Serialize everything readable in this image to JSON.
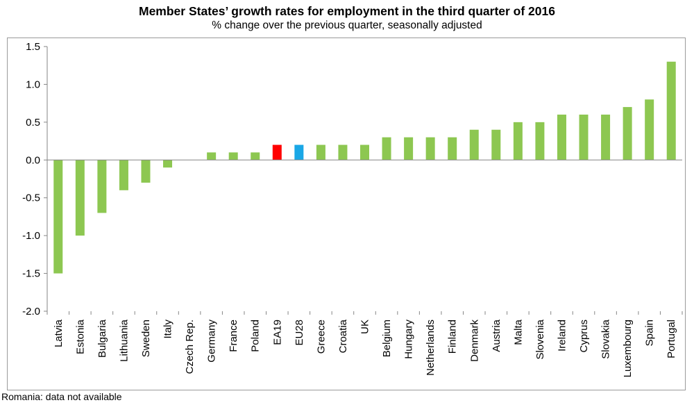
{
  "colors": {
    "default_bar": "#8dc751",
    "ea19": "#ff0000",
    "eu28": "#1aa7e6"
  },
  "chart_data": {
    "type": "bar",
    "title": "Member States’ growth rates for employment in the third quarter of 2016",
    "subtitle": "% change over the previous quarter, seasonally adjusted",
    "categories": [
      "Latvia",
      "Estonia",
      "Bulgaria",
      "Lithuania",
      "Sweden",
      "Italy",
      "Czech Rep.",
      "Germany",
      "France",
      "Poland",
      "EA19",
      "EU28",
      "Greece",
      "Croatia",
      "UK",
      "Belgium",
      "Hungary",
      "Netherlands",
      "Finland",
      "Denmark",
      "Austria",
      "Malta",
      "Slovenia",
      "Ireland",
      "Cyprus",
      "Slovakia",
      "Luxembourg",
      "Spain",
      "Portugal"
    ],
    "values": [
      -1.5,
      -1.0,
      -0.7,
      -0.4,
      -0.3,
      -0.1,
      0.0,
      0.1,
      0.1,
      0.1,
      0.2,
      0.2,
      0.2,
      0.2,
      0.2,
      0.3,
      0.3,
      0.3,
      0.3,
      0.4,
      0.4,
      0.5,
      0.5,
      0.6,
      0.6,
      0.6,
      0.7,
      0.8,
      1.3
    ],
    "highlight": {
      "EA19": "ea19",
      "EU28": "eu28"
    },
    "ylim": [
      -2.0,
      1.5
    ],
    "yticks": [
      "1.5",
      "1.0",
      "0.5",
      "0.0",
      "-0.5",
      "-1.0",
      "-1.5",
      "-2.0"
    ],
    "ytick_values": [
      1.5,
      1.0,
      0.5,
      0.0,
      -0.5,
      -1.0,
      -1.5,
      -2.0
    ],
    "grid": false,
    "xlabel": "",
    "ylabel": ""
  },
  "footnote": "Romania: data not available"
}
